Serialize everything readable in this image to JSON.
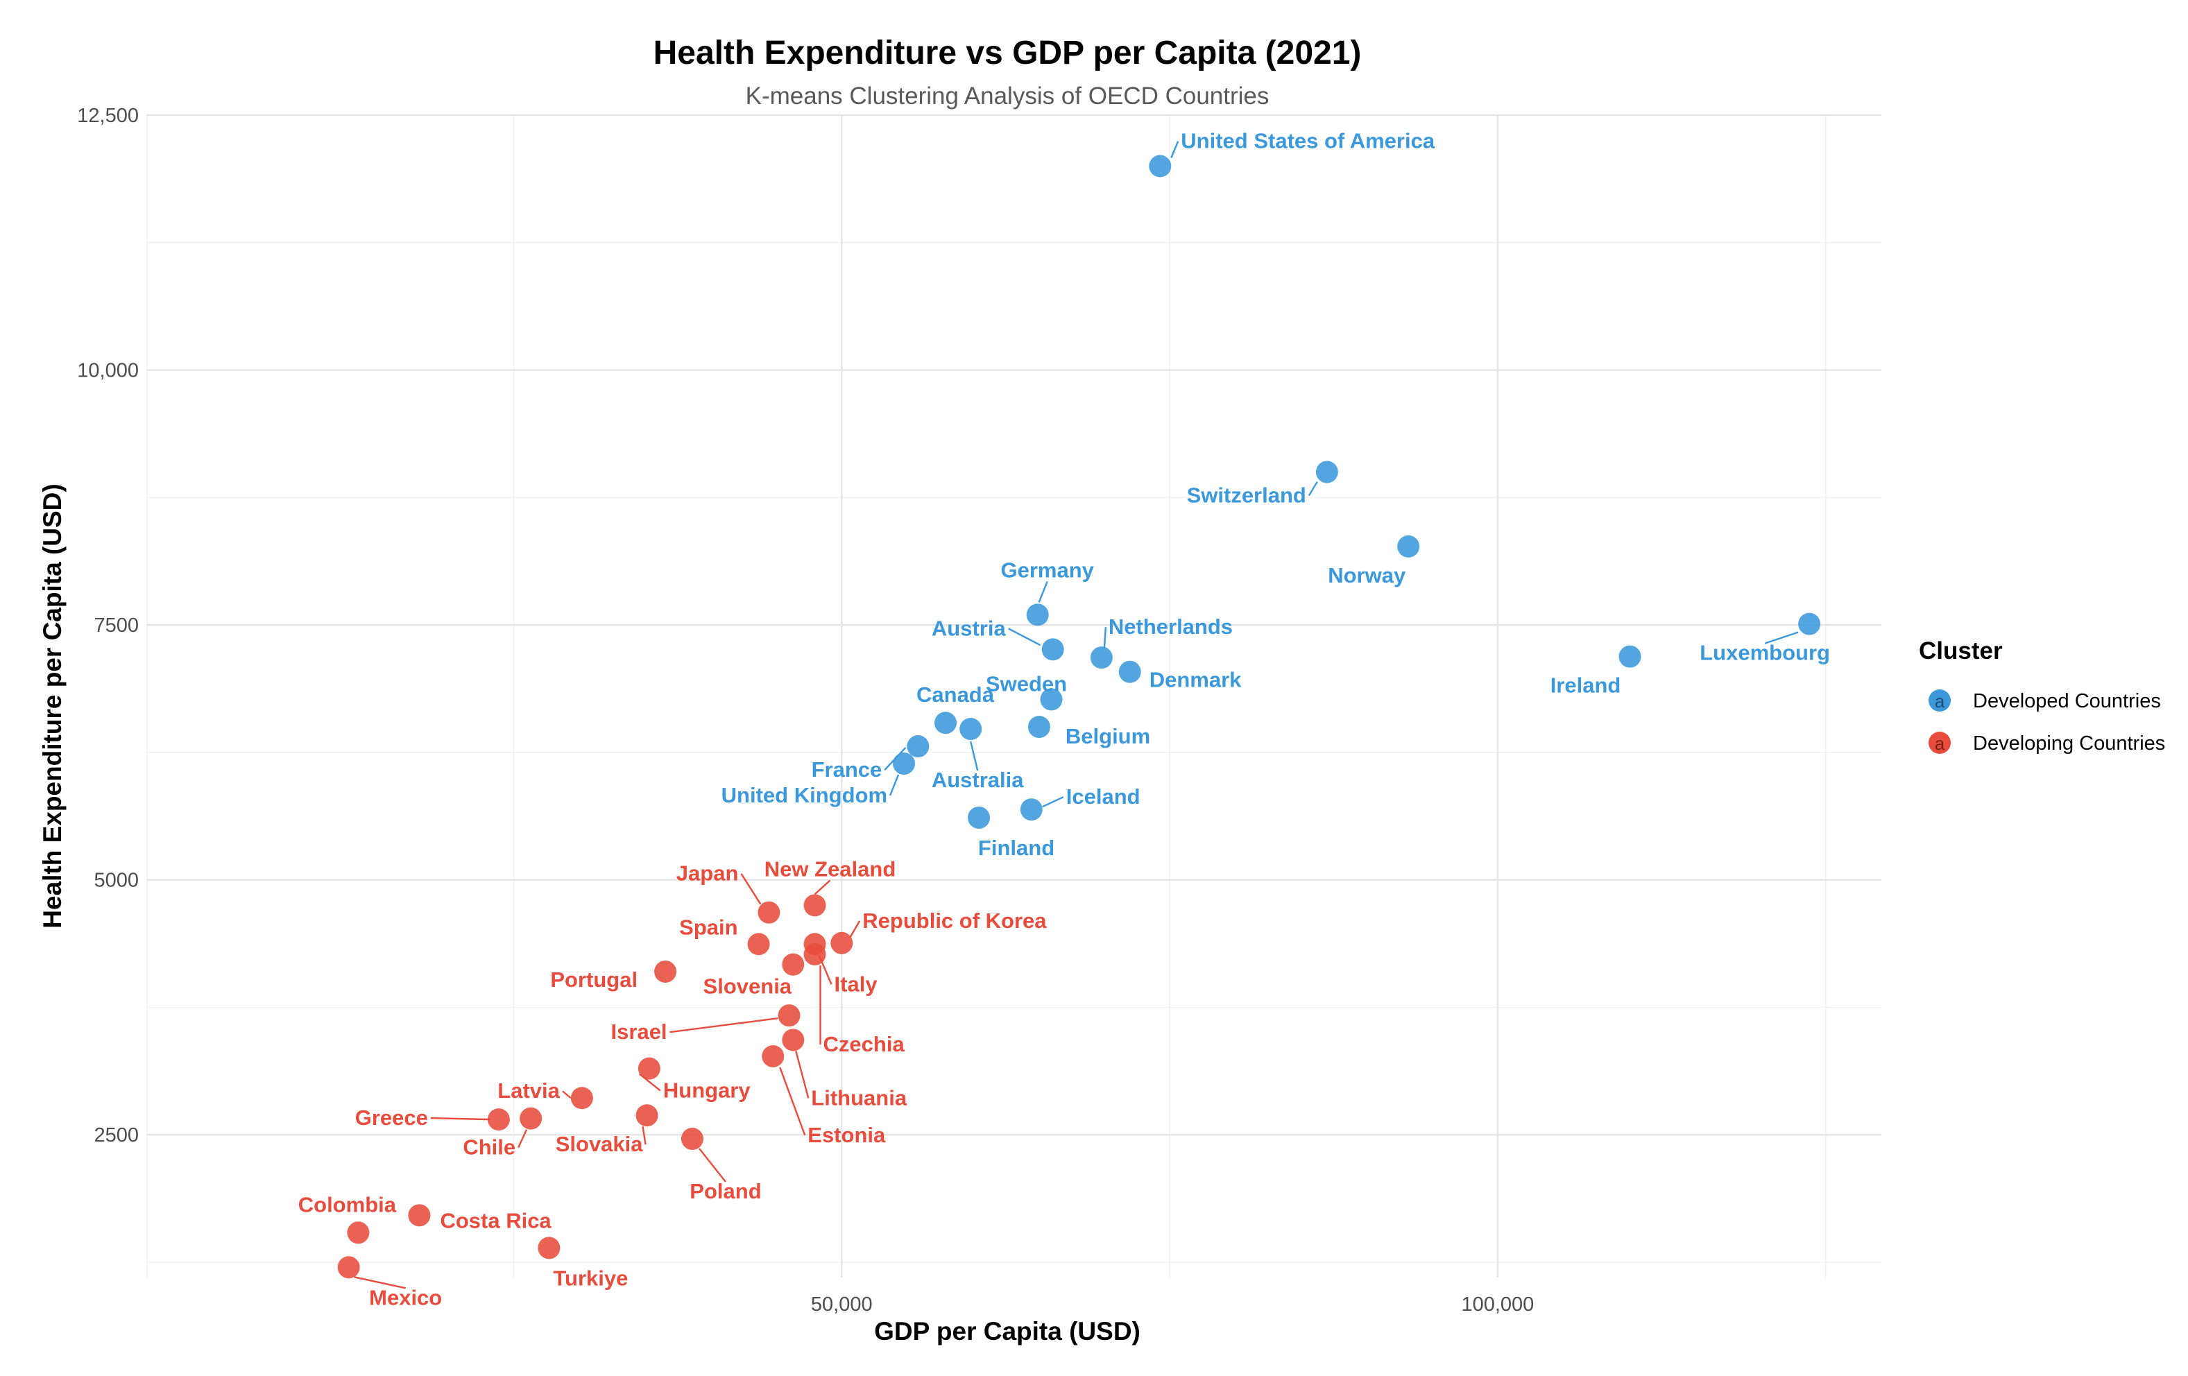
{
  "colors": {
    "developed": "#3A98DB",
    "developing": "#E74C3C"
  },
  "chart_data": {
    "type": "scatter",
    "title": "Health Expenditure vs GDP per Capita (2021)",
    "subtitle": "K-means Clustering Analysis of OECD Countries",
    "xlabel": "GDP per Capita (USD)",
    "ylabel": "Health Expenditure per Capita (USD)",
    "x_scale": "log10",
    "xlim": [
      24000,
      150000
    ],
    "ylim": [
      1100,
      12500
    ],
    "x_ticks": [
      50000,
      100000
    ],
    "x_tick_labels": [
      "50,000",
      "100,000"
    ],
    "y_ticks": [
      2500,
      5000,
      7500,
      10000,
      12500
    ],
    "y_tick_labels": [
      "2500",
      "5000",
      "7500",
      "10,000",
      "12,500"
    ],
    "legend": {
      "title": "Cluster",
      "position": "right",
      "key_glyph": "a",
      "entries": [
        {
          "label": "Developed Countries",
          "color": "#3A98DB"
        },
        {
          "label": "Developing Countries",
          "color": "#E74C3C"
        }
      ]
    },
    "series": [
      {
        "name": "Developed Countries",
        "color": "#3A98DB",
        "points": [
          {
            "label": "United States of America",
            "x": 70000,
            "y": 12000
          },
          {
            "label": "Switzerland",
            "x": 83500,
            "y": 9000
          },
          {
            "label": "Norway",
            "x": 91000,
            "y": 8270
          },
          {
            "label": "Luxembourg",
            "x": 139000,
            "y": 7510
          },
          {
            "label": "Ireland",
            "x": 115000,
            "y": 7190
          },
          {
            "label": "Germany",
            "x": 61500,
            "y": 7600
          },
          {
            "label": "Austria",
            "x": 62500,
            "y": 7260
          },
          {
            "label": "Netherlands",
            "x": 65800,
            "y": 7180
          },
          {
            "label": "Denmark",
            "x": 67800,
            "y": 7040
          },
          {
            "label": "Sweden",
            "x": 62400,
            "y": 6770
          },
          {
            "label": "Canada",
            "x": 55800,
            "y": 6540
          },
          {
            "label": "Belgium",
            "x": 61600,
            "y": 6500
          },
          {
            "label": "Australia",
            "x": 57300,
            "y": 6480
          },
          {
            "label": "France",
            "x": 54200,
            "y": 6310
          },
          {
            "label": "United Kingdom",
            "x": 53400,
            "y": 6140
          },
          {
            "label": "Iceland",
            "x": 61100,
            "y": 5690
          },
          {
            "label": "Finland",
            "x": 57800,
            "y": 5610
          }
        ]
      },
      {
        "name": "Developing Countries",
        "color": "#E74C3C",
        "points": [
          {
            "label": "Japan",
            "x": 46300,
            "y": 4680
          },
          {
            "label": "New Zealand",
            "x": 48600,
            "y": 4750
          },
          {
            "label": "Spain",
            "x": 45800,
            "y": 4370
          },
          {
            "label": "Republic of Korea",
            "x": 50000,
            "y": 4380
          },
          {
            "label": "Slovenia",
            "x": 47500,
            "y": 4170
          },
          {
            "label": "Italy",
            "x": 48600,
            "y": 4370
          },
          {
            "label": "Czechia",
            "x": 48600,
            "y": 4270
          },
          {
            "label": "Portugal",
            "x": 41500,
            "y": 4100
          },
          {
            "label": "Israel",
            "x": 47300,
            "y": 3670
          },
          {
            "label": "Lithuania",
            "x": 47500,
            "y": 3430
          },
          {
            "label": "Estonia",
            "x": 46500,
            "y": 3270
          },
          {
            "label": "Latvia",
            "x": 38000,
            "y": 2860
          },
          {
            "label": "Hungary",
            "x": 40800,
            "y": 3150
          },
          {
            "label": "Greece",
            "x": 34800,
            "y": 2650
          },
          {
            "label": "Chile",
            "x": 36000,
            "y": 2660
          },
          {
            "label": "Slovakia",
            "x": 40700,
            "y": 2690
          },
          {
            "label": "Poland",
            "x": 42700,
            "y": 2460
          },
          {
            "label": "Colombia",
            "x": 30000,
            "y": 1540
          },
          {
            "label": "Costa Rica",
            "x": 32000,
            "y": 1710
          },
          {
            "label": "Mexico",
            "x": 29700,
            "y": 1200
          },
          {
            "label": "Turkiye",
            "x": 36700,
            "y": 1390
          }
        ]
      }
    ]
  }
}
